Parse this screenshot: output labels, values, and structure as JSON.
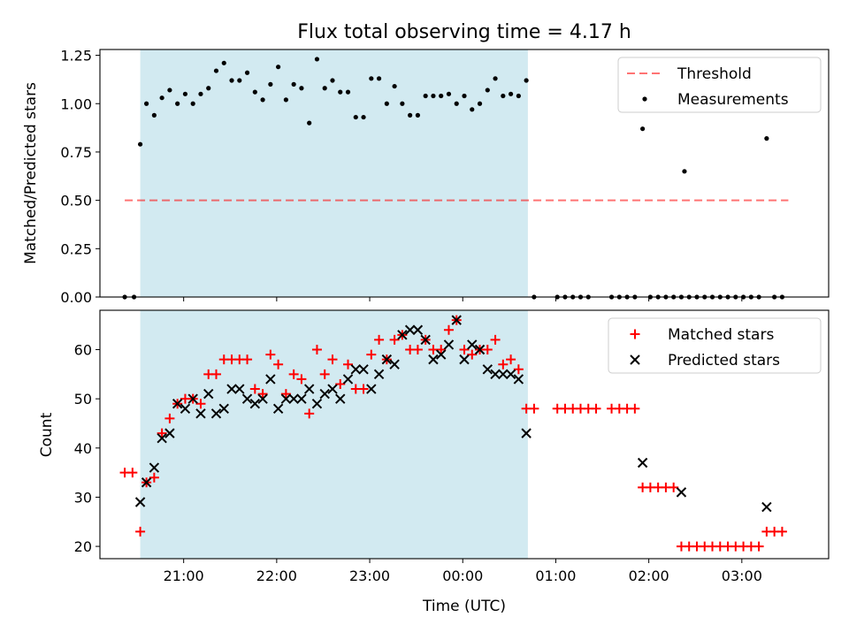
{
  "figure": {
    "title": "Flux total observing time = 4.17 h",
    "xlabel": "Time (UTC)"
  },
  "chart_data": [
    {
      "type": "scatter",
      "ylabel": "Matched/Predicted stars",
      "ylim": [
        0,
        1.28
      ],
      "yticks": [
        "0.00",
        "0.25",
        "0.50",
        "0.75",
        "1.00",
        "1.25"
      ],
      "xlim": [
        "20:06",
        "03:56"
      ],
      "shaded_span": [
        "20:32",
        "00:42"
      ],
      "shade_color": "#add8e6",
      "threshold": {
        "name": "Threshold",
        "value": 0.5,
        "x_start": "20:22",
        "x_end": "03:30",
        "color": "#ff0000"
      },
      "legend": {
        "position": "top-right",
        "entries": [
          "Threshold",
          "Measurements"
        ]
      },
      "series": [
        {
          "name": "Measurements",
          "color": "#000000",
          "marker": "dot",
          "points": [
            [
              "20:22",
              0.0
            ],
            [
              "20:28",
              0.0
            ],
            [
              "20:32",
              0.79
            ],
            [
              "20:36",
              1.0
            ],
            [
              "20:41",
              0.94
            ],
            [
              "20:46",
              1.03
            ],
            [
              "20:51",
              1.07
            ],
            [
              "20:56",
              1.0
            ],
            [
              "21:01",
              1.05
            ],
            [
              "21:06",
              1.0
            ],
            [
              "21:11",
              1.05
            ],
            [
              "21:16",
              1.08
            ],
            [
              "21:21",
              1.17
            ],
            [
              "21:26",
              1.21
            ],
            [
              "21:31",
              1.12
            ],
            [
              "21:36",
              1.12
            ],
            [
              "21:41",
              1.16
            ],
            [
              "21:46",
              1.06
            ],
            [
              "21:51",
              1.02
            ],
            [
              "21:56",
              1.1
            ],
            [
              "22:01",
              1.19
            ],
            [
              "22:06",
              1.02
            ],
            [
              "22:11",
              1.1
            ],
            [
              "22:16",
              1.08
            ],
            [
              "22:21",
              0.9
            ],
            [
              "22:26",
              1.23
            ],
            [
              "22:31",
              1.08
            ],
            [
              "22:36",
              1.12
            ],
            [
              "22:41",
              1.06
            ],
            [
              "22:46",
              1.06
            ],
            [
              "22:51",
              0.93
            ],
            [
              "22:56",
              0.93
            ],
            [
              "23:01",
              1.13
            ],
            [
              "23:06",
              1.13
            ],
            [
              "23:11",
              1.0
            ],
            [
              "23:16",
              1.09
            ],
            [
              "23:21",
              1.0
            ],
            [
              "23:26",
              0.94
            ],
            [
              "23:31",
              0.94
            ],
            [
              "23:36",
              1.04
            ],
            [
              "23:41",
              1.04
            ],
            [
              "23:46",
              1.04
            ],
            [
              "23:51",
              1.05
            ],
            [
              "23:56",
              1.0
            ],
            [
              "00:01",
              1.04
            ],
            [
              "00:06",
              0.97
            ],
            [
              "00:11",
              1.0
            ],
            [
              "00:16",
              1.07
            ],
            [
              "00:21",
              1.13
            ],
            [
              "00:26",
              1.04
            ],
            [
              "00:31",
              1.05
            ],
            [
              "00:36",
              1.04
            ],
            [
              "00:41",
              1.12
            ],
            [
              "00:46",
              0.0
            ],
            [
              "01:01",
              0.0
            ],
            [
              "01:06",
              0.0
            ],
            [
              "01:11",
              0.0
            ],
            [
              "01:16",
              0.0
            ],
            [
              "01:21",
              0.0
            ],
            [
              "01:36",
              0.0
            ],
            [
              "01:41",
              0.0
            ],
            [
              "01:46",
              0.0
            ],
            [
              "01:51",
              0.0
            ],
            [
              "01:56",
              0.87
            ],
            [
              "02:01",
              0.0
            ],
            [
              "02:06",
              0.0
            ],
            [
              "02:11",
              0.0
            ],
            [
              "02:16",
              0.0
            ],
            [
              "02:21",
              0.0
            ],
            [
              "02:23",
              0.65
            ],
            [
              "02:26",
              0.0
            ],
            [
              "02:31",
              0.0
            ],
            [
              "02:36",
              0.0
            ],
            [
              "02:41",
              0.0
            ],
            [
              "02:46",
              0.0
            ],
            [
              "02:51",
              0.0
            ],
            [
              "02:56",
              0.0
            ],
            [
              "03:01",
              0.0
            ],
            [
              "03:06",
              0.0
            ],
            [
              "03:11",
              0.0
            ],
            [
              "03:16",
              0.82
            ],
            [
              "03:21",
              0.0
            ],
            [
              "03:26",
              0.0
            ]
          ]
        }
      ]
    },
    {
      "type": "scatter",
      "ylabel": "Count",
      "ylim": [
        17.5,
        68
      ],
      "yticks": [
        "20",
        "30",
        "40",
        "50",
        "60"
      ],
      "xlim": [
        "20:06",
        "03:56"
      ],
      "xticks": [
        "21:00",
        "22:00",
        "23:00",
        "00:00",
        "01:00",
        "02:00",
        "03:00"
      ],
      "shaded_span": [
        "20:32",
        "00:42"
      ],
      "shade_color": "#add8e6",
      "legend": {
        "position": "top-right",
        "entries": [
          "Matched stars",
          "Predicted stars"
        ]
      },
      "series": [
        {
          "name": "Matched stars",
          "color": "#ff0000",
          "marker": "plus",
          "points": [
            [
              "20:22",
              35
            ],
            [
              "20:27",
              35
            ],
            [
              "20:32",
              23
            ],
            [
              "20:36",
              33
            ],
            [
              "20:41",
              34
            ],
            [
              "20:46",
              43
            ],
            [
              "20:51",
              46
            ],
            [
              "20:56",
              49
            ],
            [
              "21:01",
              50
            ],
            [
              "21:06",
              50
            ],
            [
              "21:11",
              49
            ],
            [
              "21:16",
              55
            ],
            [
              "21:21",
              55
            ],
            [
              "21:26",
              58
            ],
            [
              "21:31",
              58
            ],
            [
              "21:36",
              58
            ],
            [
              "21:41",
              58
            ],
            [
              "21:46",
              52
            ],
            [
              "21:51",
              51
            ],
            [
              "21:56",
              59
            ],
            [
              "22:01",
              57
            ],
            [
              "22:06",
              51
            ],
            [
              "22:11",
              55
            ],
            [
              "22:16",
              54
            ],
            [
              "22:21",
              47
            ],
            [
              "22:26",
              60
            ],
            [
              "22:31",
              55
            ],
            [
              "22:36",
              58
            ],
            [
              "22:41",
              53
            ],
            [
              "22:46",
              57
            ],
            [
              "22:51",
              52
            ],
            [
              "22:56",
              52
            ],
            [
              "23:01",
              59
            ],
            [
              "23:06",
              62
            ],
            [
              "23:11",
              58
            ],
            [
              "23:16",
              62
            ],
            [
              "23:21",
              63
            ],
            [
              "23:26",
              60
            ],
            [
              "23:31",
              60
            ],
            [
              "23:36",
              62
            ],
            [
              "23:41",
              60
            ],
            [
              "23:46",
              60
            ],
            [
              "23:51",
              64
            ],
            [
              "23:56",
              66
            ],
            [
              "00:01",
              60
            ],
            [
              "00:06",
              59
            ],
            [
              "00:11",
              60
            ],
            [
              "00:16",
              60
            ],
            [
              "00:21",
              62
            ],
            [
              "00:26",
              57
            ],
            [
              "00:31",
              58
            ],
            [
              "00:36",
              56
            ],
            [
              "00:41",
              48
            ],
            [
              "00:46",
              48
            ],
            [
              "01:01",
              48
            ],
            [
              "01:06",
              48
            ],
            [
              "01:11",
              48
            ],
            [
              "01:16",
              48
            ],
            [
              "01:21",
              48
            ],
            [
              "01:26",
              48
            ],
            [
              "01:36",
              48
            ],
            [
              "01:41",
              48
            ],
            [
              "01:46",
              48
            ],
            [
              "01:51",
              48
            ],
            [
              "01:56",
              32
            ],
            [
              "02:01",
              32
            ],
            [
              "02:06",
              32
            ],
            [
              "02:11",
              32
            ],
            [
              "02:16",
              32
            ],
            [
              "02:21",
              20
            ],
            [
              "02:26",
              20
            ],
            [
              "02:31",
              20
            ],
            [
              "02:36",
              20
            ],
            [
              "02:41",
              20
            ],
            [
              "02:46",
              20
            ],
            [
              "02:51",
              20
            ],
            [
              "02:56",
              20
            ],
            [
              "03:01",
              20
            ],
            [
              "03:06",
              20
            ],
            [
              "03:11",
              20
            ],
            [
              "03:16",
              23
            ],
            [
              "03:21",
              23
            ],
            [
              "03:26",
              23
            ]
          ]
        },
        {
          "name": "Predicted stars",
          "color": "#000000",
          "marker": "cross",
          "points": [
            [
              "20:32",
              29
            ],
            [
              "20:36",
              33
            ],
            [
              "20:41",
              36
            ],
            [
              "20:46",
              42
            ],
            [
              "20:51",
              43
            ],
            [
              "20:56",
              49
            ],
            [
              "21:01",
              48
            ],
            [
              "21:06",
              50
            ],
            [
              "21:11",
              47
            ],
            [
              "21:16",
              51
            ],
            [
              "21:21",
              47
            ],
            [
              "21:26",
              48
            ],
            [
              "21:31",
              52
            ],
            [
              "21:36",
              52
            ],
            [
              "21:41",
              50
            ],
            [
              "21:46",
              49
            ],
            [
              "21:51",
              50
            ],
            [
              "21:56",
              54
            ],
            [
              "22:01",
              48
            ],
            [
              "22:06",
              50
            ],
            [
              "22:11",
              50
            ],
            [
              "22:16",
              50
            ],
            [
              "22:21",
              52
            ],
            [
              "22:26",
              49
            ],
            [
              "22:31",
              51
            ],
            [
              "22:36",
              52
            ],
            [
              "22:41",
              50
            ],
            [
              "22:46",
              54
            ],
            [
              "22:51",
              56
            ],
            [
              "22:56",
              56
            ],
            [
              "23:01",
              52
            ],
            [
              "23:06",
              55
            ],
            [
              "23:11",
              58
            ],
            [
              "23:16",
              57
            ],
            [
              "23:21",
              63
            ],
            [
              "23:26",
              64
            ],
            [
              "23:31",
              64
            ],
            [
              "23:36",
              62
            ],
            [
              "23:41",
              58
            ],
            [
              "23:46",
              59
            ],
            [
              "23:51",
              61
            ],
            [
              "23:56",
              66
            ],
            [
              "00:01",
              58
            ],
            [
              "00:06",
              61
            ],
            [
              "00:11",
              60
            ],
            [
              "00:16",
              56
            ],
            [
              "00:21",
              55
            ],
            [
              "00:26",
              55
            ],
            [
              "00:31",
              55
            ],
            [
              "00:36",
              54
            ],
            [
              "00:41",
              43
            ],
            [
              "01:56",
              37
            ],
            [
              "02:21",
              31
            ],
            [
              "03:16",
              28
            ]
          ]
        }
      ]
    }
  ]
}
